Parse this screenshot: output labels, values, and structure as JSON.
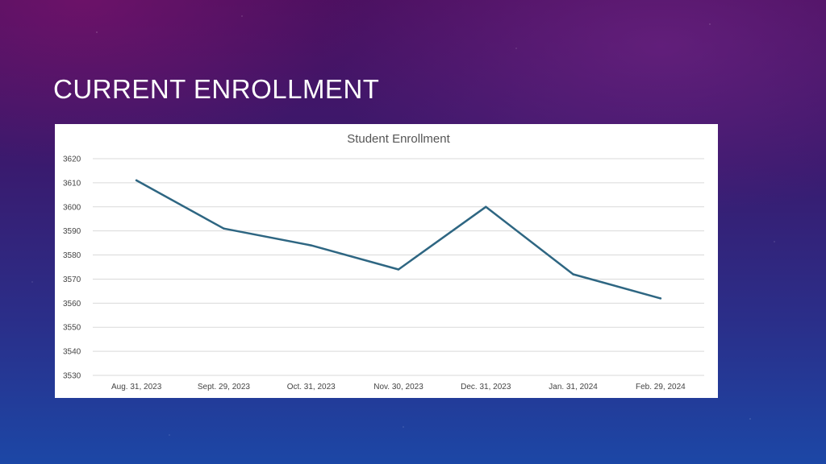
{
  "slide": {
    "title": "CURRENT ENROLLMENT"
  },
  "colors": {
    "series": "#2e6682",
    "grid": "#d9d9d9",
    "chart_background": "#ffffff",
    "title_text": "#ffffff"
  },
  "chart_data": {
    "type": "line",
    "title": "Student Enrollment",
    "xlabel": "",
    "ylabel": "",
    "categories": [
      "Aug. 31, 2023",
      "Sept. 29, 2023",
      "Oct. 31, 2023",
      "Nov. 30, 2023",
      "Dec. 31, 2023",
      "Jan. 31, 2024",
      "Feb. 29, 2024"
    ],
    "series": [
      {
        "values": [
          3611,
          3591,
          3584,
          3574,
          3600,
          3572,
          3562
        ]
      }
    ],
    "ylim": [
      3530,
      3620
    ],
    "yticks": [
      3530,
      3540,
      3550,
      3560,
      3570,
      3580,
      3590,
      3600,
      3610,
      3620
    ],
    "grid": true,
    "legend": "none"
  }
}
